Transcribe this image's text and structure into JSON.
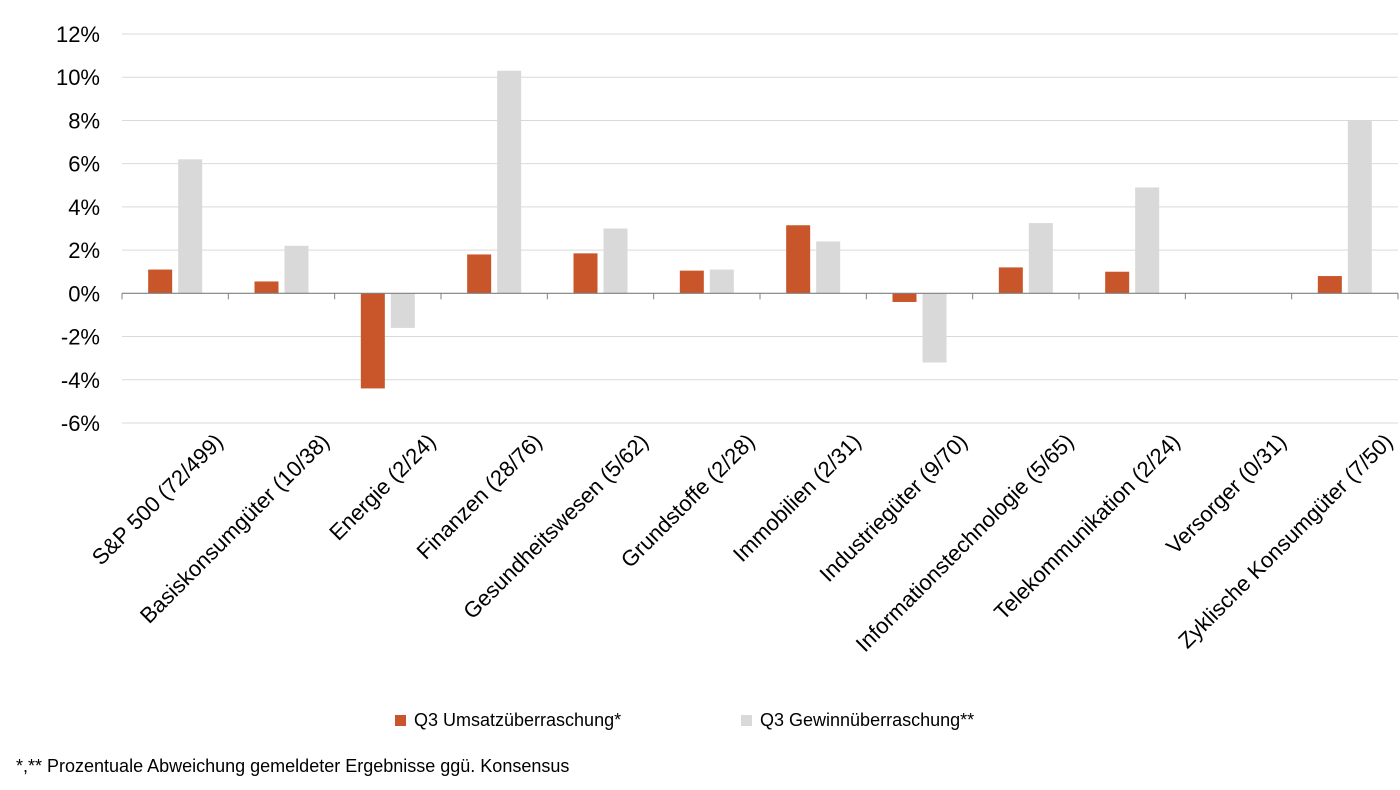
{
  "chart_data": {
    "type": "bar",
    "categories": [
      "S&P 500 (72/499)",
      "Basiskonsumgüter (10/38)",
      "Energie (2/24)",
      "Finanzen (28/76)",
      "Gesundheitswesen (5/62)",
      "Grundstoffe (2/28)",
      "Immobilien (2/31)",
      "Industriegüter (9/70)",
      "Informationstechnologie (5/65)",
      "Telekommunikation (2/24)",
      "Versorger (0/31)",
      "Zyklische Konsumgüter (7/50)"
    ],
    "series": [
      {
        "name": "Q3 Umsatzüberraschung*",
        "color": "#c8562a",
        "values": [
          1.1,
          0.55,
          -4.4,
          1.8,
          1.85,
          1.05,
          3.15,
          -0.4,
          1.2,
          1.0,
          0.0,
          0.8
        ]
      },
      {
        "name": "Q3 Gewinnüberraschung**",
        "color": "#d9d9d9",
        "values": [
          6.2,
          2.2,
          -1.6,
          10.3,
          3.0,
          1.1,
          2.4,
          -3.2,
          3.25,
          4.9,
          0.0,
          8.0
        ]
      }
    ],
    "ylim": [
      -6,
      12
    ],
    "ytick_step": 2,
    "ytick_suffix": "%",
    "grid": true,
    "legend": "bottom",
    "footnote": "*,** Prozentuale Abweichung gemeldeter Ergebnisse ggü. Konsensus"
  }
}
